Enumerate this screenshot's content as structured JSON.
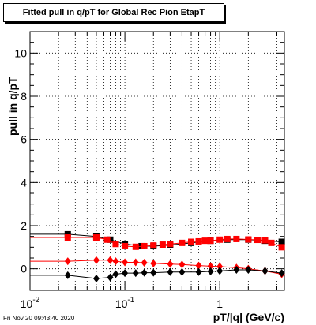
{
  "title": "Fitted pull in q/pT for Global Rec Pion EtapT",
  "timestamp": "Fri Nov 20 09:43:40 2020",
  "chart_data": {
    "type": "scatter",
    "title": "Fitted pull in q/pT for Global Rec Pion EtapT",
    "xlabel": "pT/|q| (GeV/c)",
    "ylabel": "pull in q/pT",
    "x_scale": "log",
    "xlim": [
      0.01,
      4.8
    ],
    "ylim": [
      -1.0,
      11.0
    ],
    "y_ticks": [
      0,
      2,
      4,
      6,
      8,
      10
    ],
    "x_tick_labels": [
      "10^-2",
      "10^-1",
      "1"
    ],
    "grid": true,
    "series": [
      {
        "marker": "square",
        "color": "#000000",
        "x": [
          0.025,
          0.05,
          0.07,
          0.1,
          0.15,
          0.2,
          0.3,
          0.5,
          0.8,
          1.2,
          2.0,
          3.0,
          4.5
        ],
        "y": [
          1.6,
          1.5,
          1.35,
          1.15,
          1.05,
          1.05,
          1.1,
          1.2,
          1.3,
          1.35,
          1.35,
          1.3,
          1.25
        ]
      },
      {
        "marker": "square",
        "color": "#ff0000",
        "x": [
          0.025,
          0.05,
          0.065,
          0.08,
          0.1,
          0.13,
          0.16,
          0.2,
          0.25,
          0.3,
          0.4,
          0.5,
          0.6,
          0.7,
          0.8,
          1.0,
          1.2,
          1.5,
          2.0,
          2.5,
          3.0,
          3.5,
          4.5
        ],
        "y": [
          1.45,
          1.45,
          1.35,
          1.15,
          1.05,
          1.02,
          1.05,
          1.08,
          1.12,
          1.15,
          1.2,
          1.25,
          1.27,
          1.3,
          1.3,
          1.35,
          1.38,
          1.38,
          1.36,
          1.34,
          1.32,
          1.2,
          1.0
        ]
      },
      {
        "marker": "diamond",
        "color": "#ff0000",
        "x": [
          0.025,
          0.05,
          0.07,
          0.08,
          0.1,
          0.13,
          0.16,
          0.2,
          0.3,
          0.4,
          0.6,
          0.8,
          1.0,
          1.5,
          2.0,
          3.0,
          4.5
        ],
        "y": [
          0.35,
          0.4,
          0.4,
          0.35,
          0.3,
          0.3,
          0.28,
          0.25,
          0.22,
          0.2,
          0.15,
          0.12,
          0.1,
          0.05,
          0.0,
          -0.1,
          -0.25
        ]
      },
      {
        "marker": "diamond",
        "color": "#000000",
        "x": [
          0.025,
          0.05,
          0.07,
          0.08,
          0.1,
          0.13,
          0.16,
          0.2,
          0.3,
          0.4,
          0.6,
          0.8,
          1.0,
          1.5,
          2.0,
          3.0,
          4.5
        ],
        "y": [
          -0.3,
          -0.45,
          -0.4,
          -0.25,
          -0.2,
          -0.2,
          -0.18,
          -0.18,
          -0.15,
          -0.15,
          -0.15,
          -0.12,
          -0.1,
          -0.05,
          -0.05,
          -0.1,
          -0.2
        ]
      }
    ]
  }
}
